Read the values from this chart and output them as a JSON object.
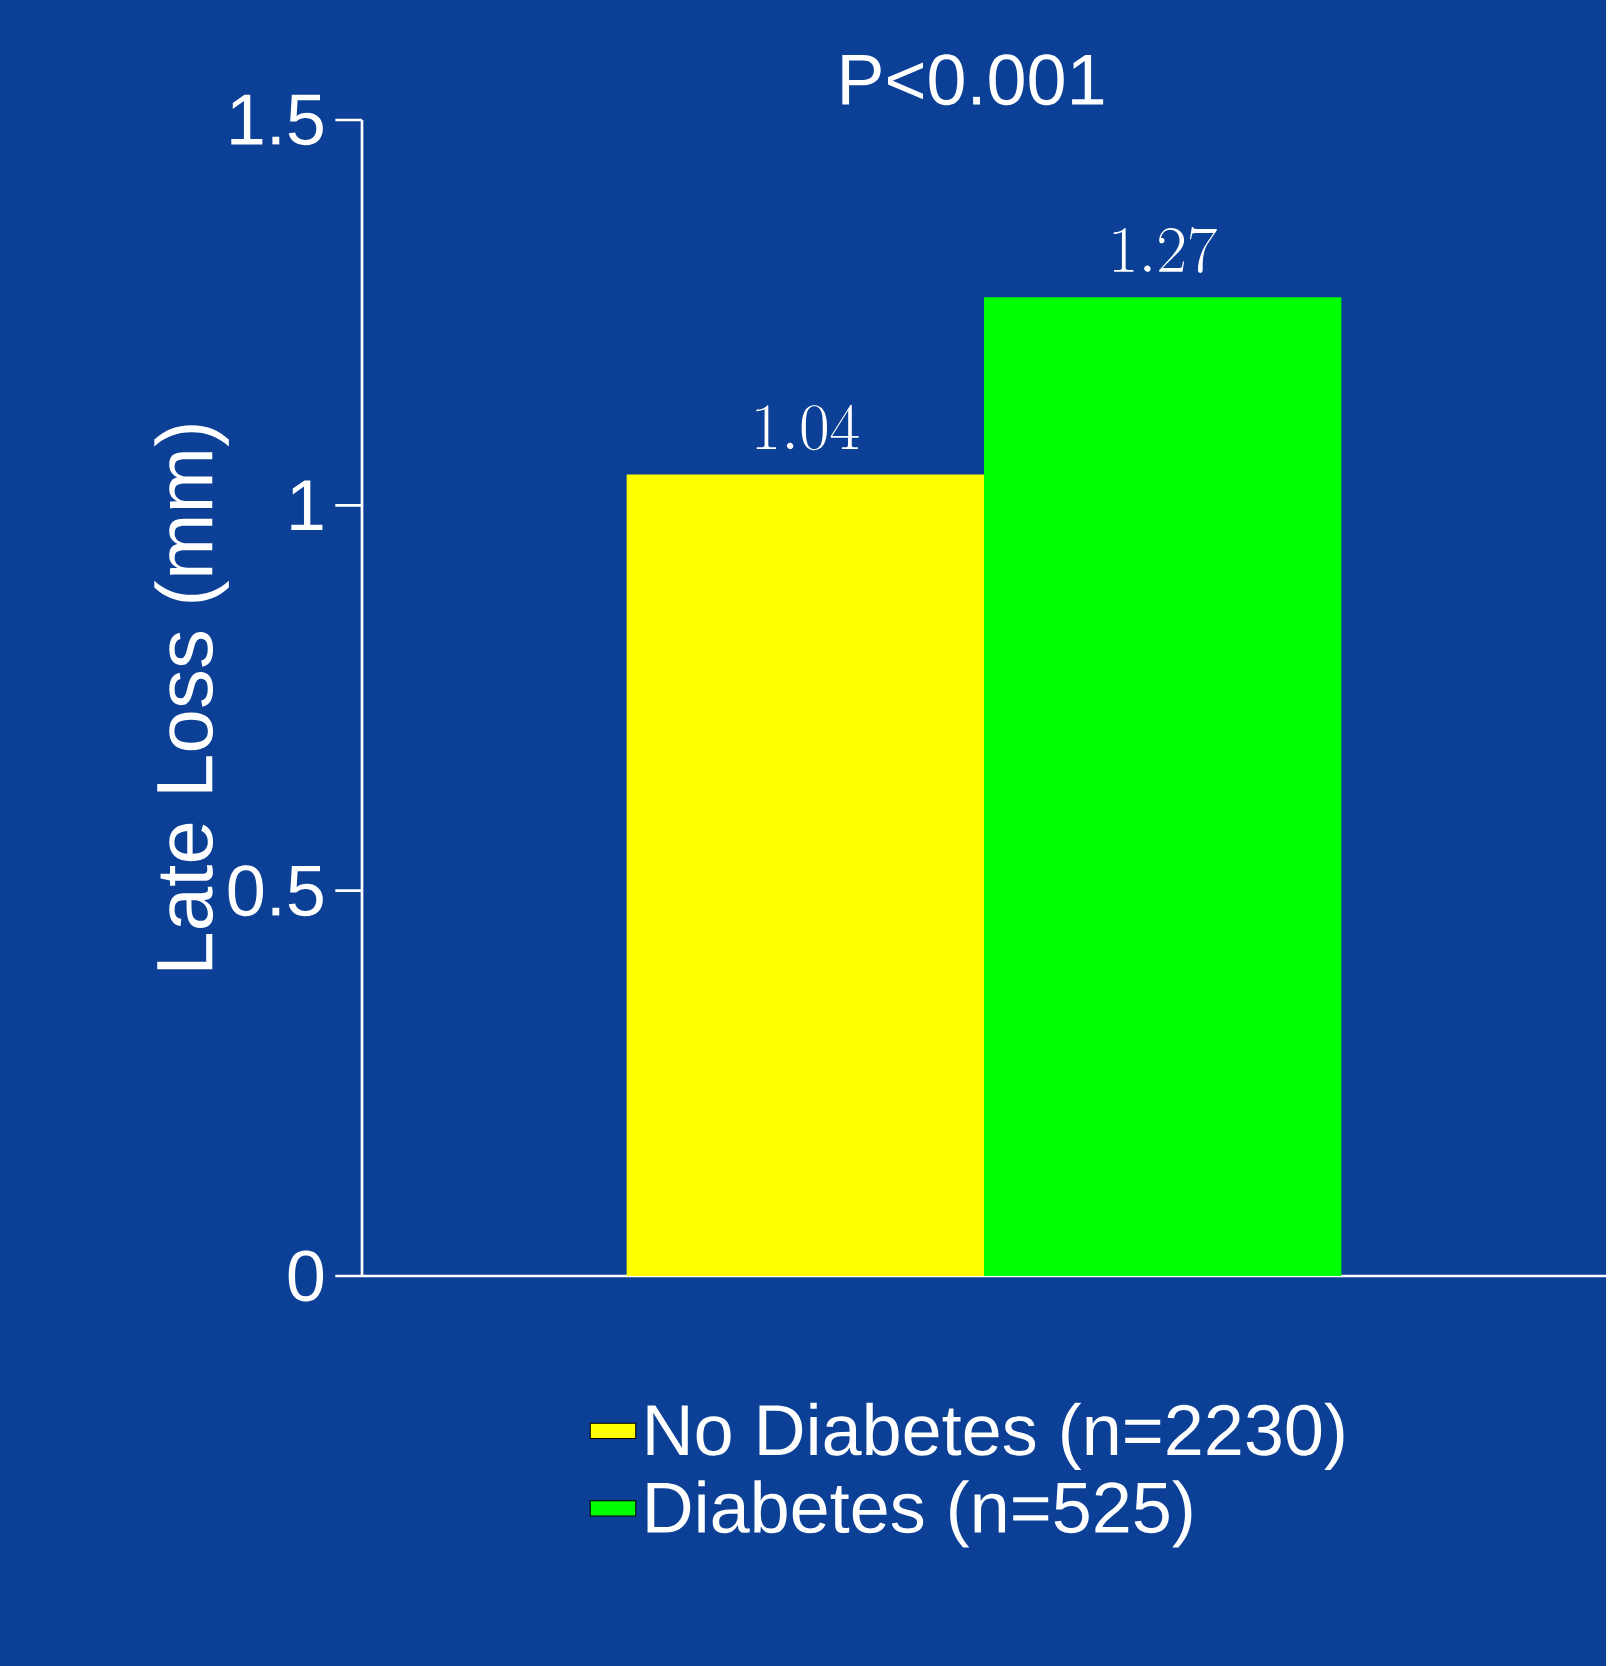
{
  "chart_data": {
    "type": "bar",
    "categories": [
      null
    ],
    "series": [
      {
        "name": "No Diabetes (n=2230)",
        "color": "#ffff00",
        "values": [
          1.04
        ]
      },
      {
        "name": "Diabetes (n=525)",
        "color": "#00ff00",
        "values": [
          1.27
        ]
      }
    ],
    "ylabel": "Late Loss (mm)",
    "ylim": [
      0,
      1.5
    ],
    "yticks": [
      0,
      0.5,
      1,
      1.5
    ],
    "data_labels": true,
    "legend": "bottom",
    "grid": false,
    "annotations": [
      "P<0.001"
    ]
  }
}
